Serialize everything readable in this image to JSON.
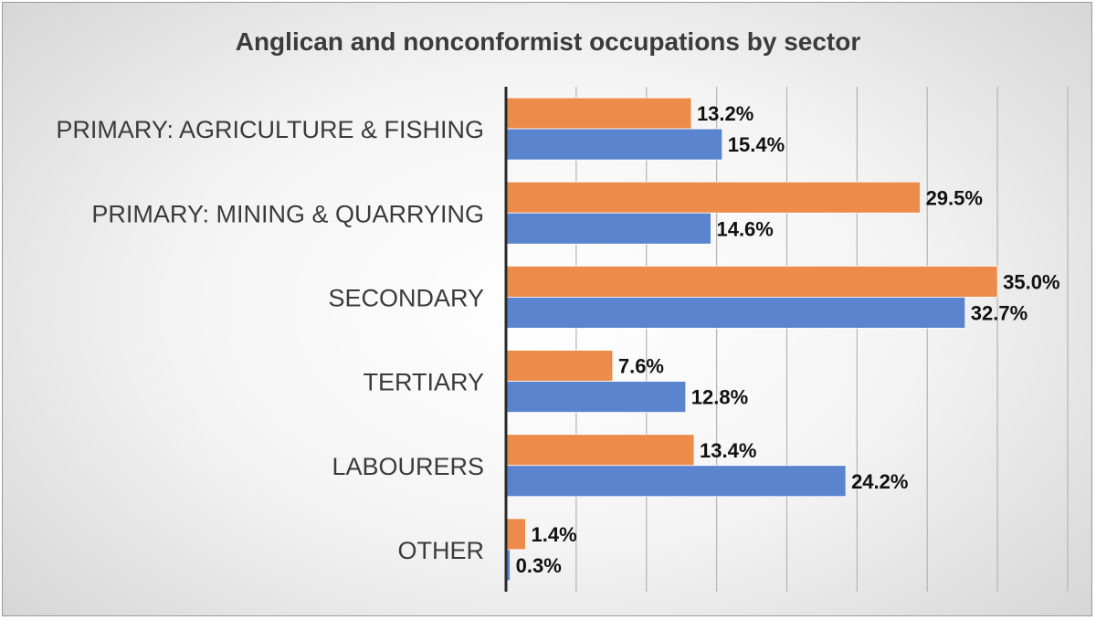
{
  "chart_data": {
    "type": "bar",
    "orientation": "horizontal",
    "title": "Anglican and nonconformist occupations by sector",
    "categories": [
      "PRIMARY: AGRICULTURE & FISHING",
      "PRIMARY: MINING & QUARRYING",
      "SECONDARY",
      "TERTIARY",
      "LABOURERS",
      "OTHER"
    ],
    "series": [
      {
        "color": "#ed8b4a",
        "values": [
          13.2,
          29.5,
          35.0,
          7.6,
          13.4,
          1.4
        ],
        "labels": [
          "13.2%",
          "29.5%",
          "35.0%",
          "7.6%",
          "13.4%",
          "1.4%"
        ]
      },
      {
        "color": "#5b84cf",
        "values": [
          15.4,
          14.6,
          32.7,
          12.8,
          24.2,
          0.3
        ],
        "labels": [
          "15.4%",
          "14.6%",
          "32.7%",
          "12.8%",
          "24.2%",
          "0.3%"
        ]
      }
    ],
    "xlim": [
      0,
      40
    ],
    "grid": true,
    "legend": "none"
  }
}
